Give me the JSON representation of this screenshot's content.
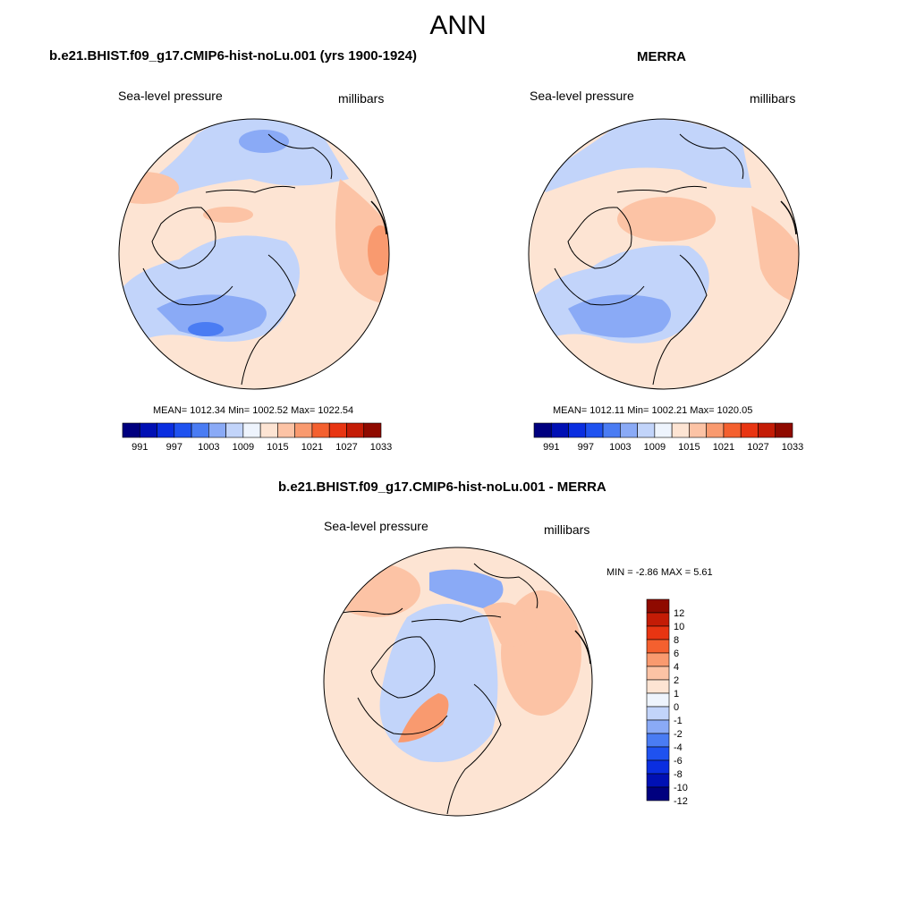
{
  "page": {
    "title": "ANN",
    "colors": {
      "land_outline": "#000000",
      "background": "#ffffff"
    }
  },
  "panels": [
    {
      "title": "b.e21.BHIST.f09_g17.CMIP6-hist-noLu.001 (yrs 1900-1924)",
      "left_label": "Sea-level pressure",
      "right_label": "millibars",
      "stats": "MEAN= 1012.34  Min= 1002.52  Max= 1022.54",
      "mean": 1012.34,
      "min": 1002.52,
      "max": 1022.54,
      "colorbar_labels": [
        "991",
        "997",
        "1003",
        "1009",
        "1015",
        "1021",
        "1027",
        "1033"
      ]
    },
    {
      "title": "MERRA",
      "left_label": "Sea-level pressure",
      "right_label": "millibars",
      "stats": "MEAN= 1012.11  Min= 1002.21  Max= 1020.05",
      "mean": 1012.11,
      "min": 1002.21,
      "max": 1020.05,
      "colorbar_labels": [
        "991",
        "997",
        "1003",
        "1009",
        "1015",
        "1021",
        "1027",
        "1033"
      ]
    },
    {
      "title": "b.e21.BHIST.f09_g17.CMIP6-hist-noLu.001 - MERRA",
      "left_label": "Sea-level pressure",
      "right_label": "millibars",
      "stats": "MIN =  -2.86 MAX =   5.61",
      "min": -2.86,
      "max": 5.61,
      "colorbar_labels": [
        "12",
        "10",
        "8",
        "6",
        "4",
        "2",
        "1",
        "0",
        "-1",
        "-2",
        "-4",
        "-6",
        "-8",
        "-10",
        "-12"
      ]
    }
  ],
  "colorbar_colors": [
    "#00007f",
    "#0010b4",
    "#0a2ee0",
    "#1f52f0",
    "#4a7cf3",
    "#8aaaf6",
    "#c2d4fa",
    "#eef4fd",
    "#fde4d3",
    "#fcc3a5",
    "#f99a6f",
    "#f4602f",
    "#e83512",
    "#c41c06",
    "#8f0a00"
  ],
  "diff_colorbar_colors": [
    "#8f0a00",
    "#c41c06",
    "#e83512",
    "#f4602f",
    "#f99a6f",
    "#fcc3a5",
    "#fde4d3",
    "#eef4fd",
    "#c2d4fa",
    "#8aaaf6",
    "#4a7cf3",
    "#1f52f0",
    "#0a2ee0",
    "#0010b4",
    "#00007f"
  ]
}
